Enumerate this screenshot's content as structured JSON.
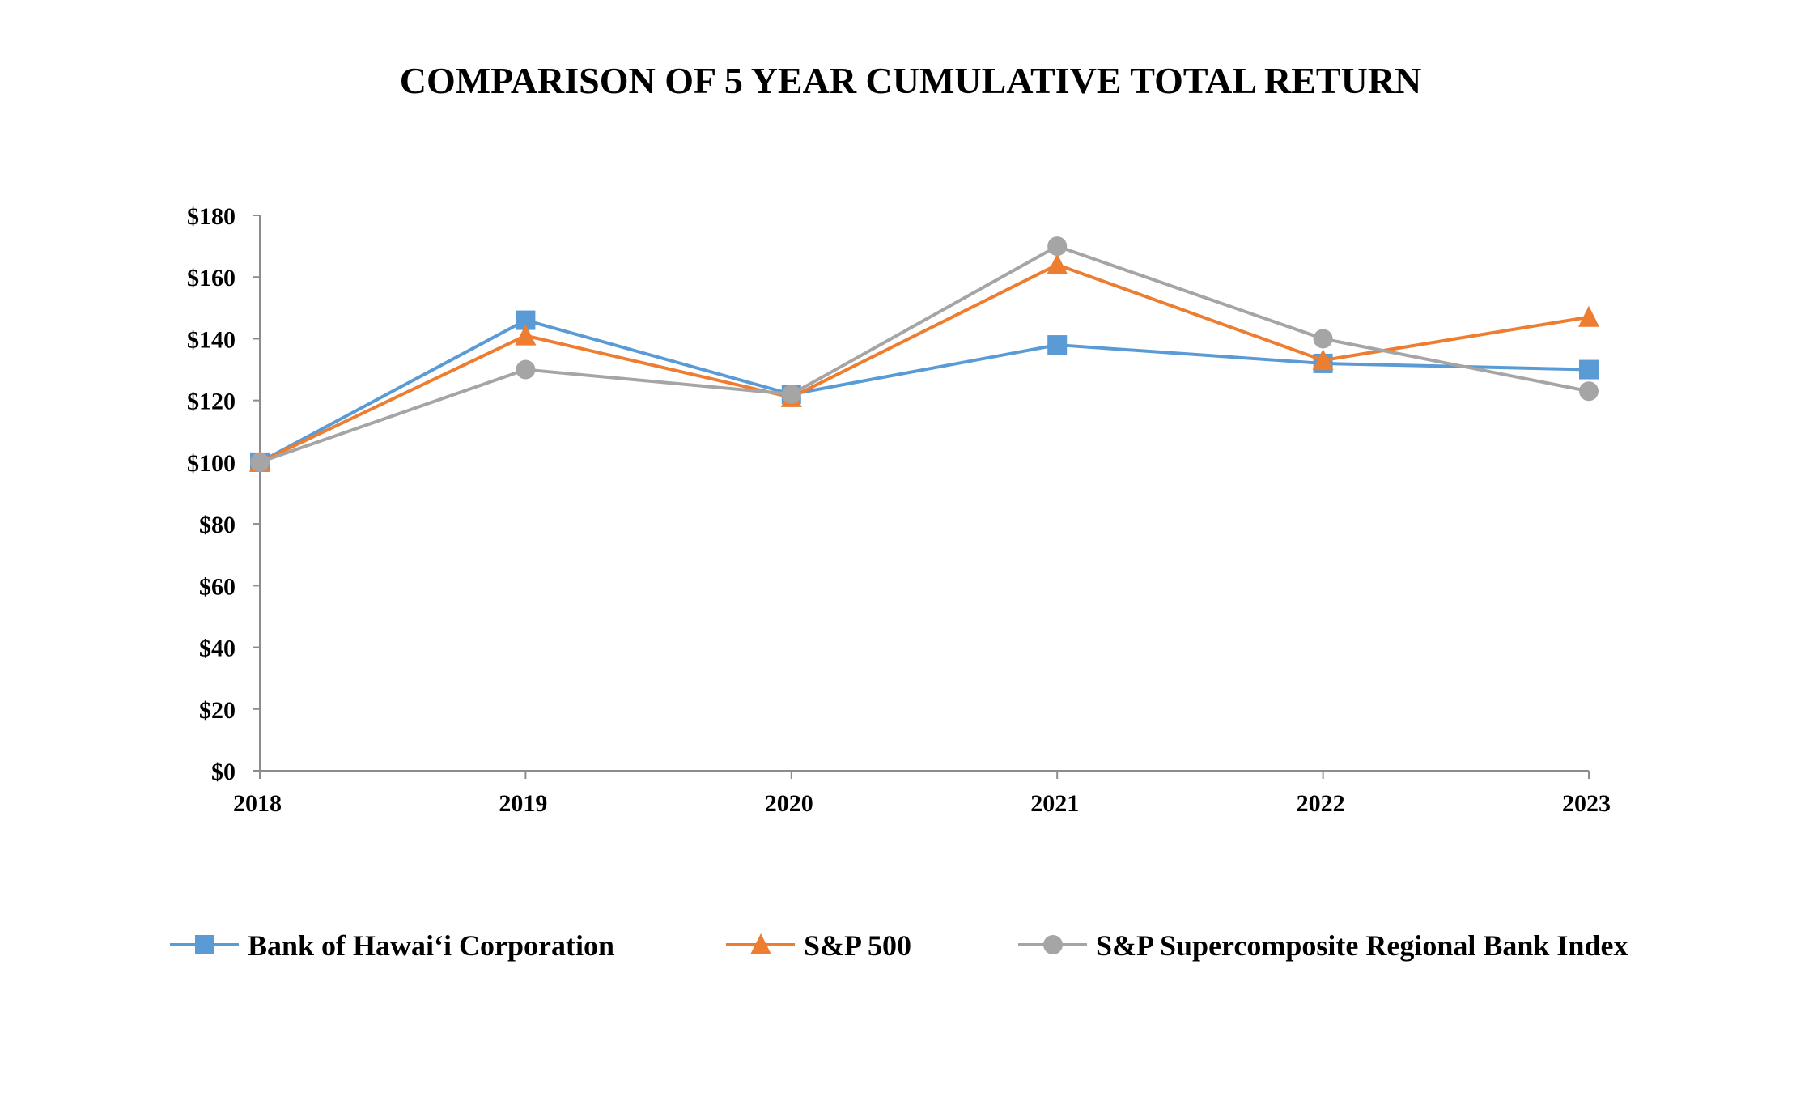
{
  "chart_data": {
    "type": "line",
    "title": "COMPARISON OF 5 YEAR CUMULATIVE TOTAL RETURN",
    "xlabel": "",
    "ylabel": "",
    "categories": [
      "2018",
      "2019",
      "2020",
      "2021",
      "2022",
      "2023"
    ],
    "ylim": [
      0,
      180
    ],
    "y_ticks": [
      0,
      20,
      40,
      60,
      80,
      100,
      120,
      140,
      160,
      180
    ],
    "y_tick_labels": [
      "$0",
      "$20",
      "$40",
      "$60",
      "$80",
      "$100",
      "$120",
      "$140",
      "$160",
      "$180"
    ],
    "grid": false,
    "legend_position": "bottom",
    "series": [
      {
        "name": "Bank of Hawai‘i Corporation",
        "marker": "square",
        "color": "#5b9bd5",
        "values": [
          100,
          146,
          122,
          138,
          132,
          130
        ]
      },
      {
        "name": "S&P 500",
        "marker": "triangle",
        "color": "#ed7d31",
        "values": [
          100,
          141,
          121,
          164,
          133,
          147
        ]
      },
      {
        "name": "S&P Supercomposite Regional Bank Index",
        "marker": "circle",
        "color": "#a5a5a5",
        "values": [
          100,
          130,
          122,
          170,
          140,
          123
        ]
      }
    ]
  }
}
